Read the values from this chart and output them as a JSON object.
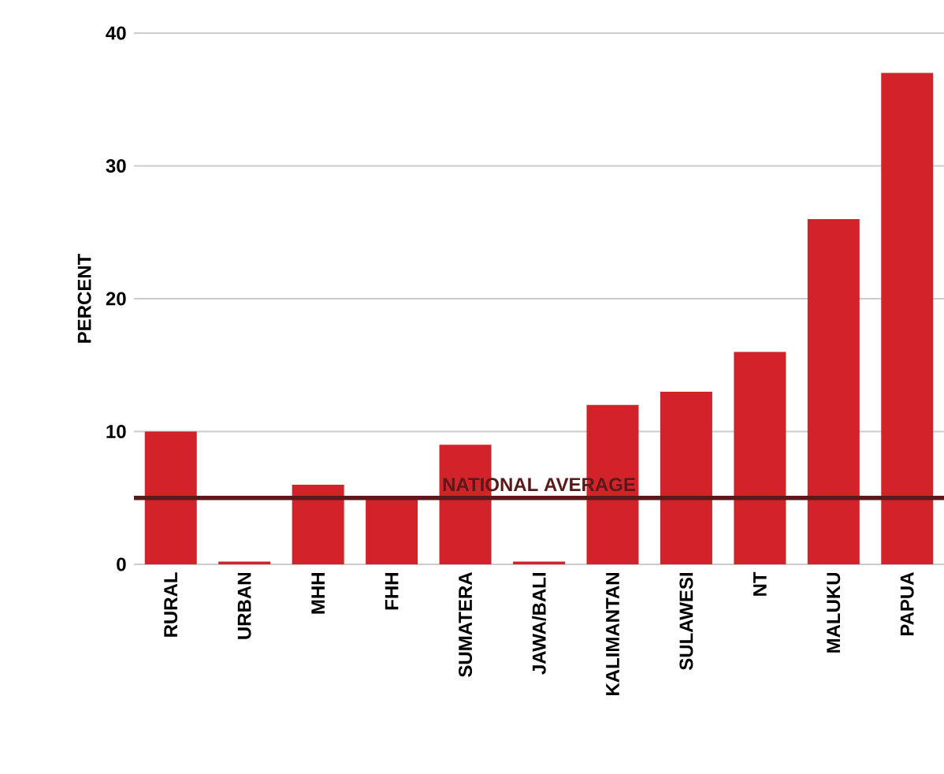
{
  "chart_data": {
    "type": "bar",
    "ylabel": "PERCENT",
    "categories": [
      "RURAL",
      "URBAN",
      "MHH",
      "FHH",
      "SUMATERA",
      "JAWA/BALI",
      "KALIMANTAN",
      "SULAWESI",
      "NT",
      "MALUKU",
      "PAPUA"
    ],
    "values": [
      10,
      0.2,
      6,
      5,
      9,
      0.2,
      12,
      13,
      16,
      26,
      37
    ],
    "color": "#d2232a",
    "ylim": [
      0,
      40
    ],
    "yticks": [
      0,
      10,
      20,
      30,
      40
    ],
    "grid": "y",
    "ref_lines": [
      {
        "axis": "y",
        "value": 5,
        "label": "NATIONAL AVERAGE",
        "color": "#5a1a1a"
      }
    ]
  }
}
